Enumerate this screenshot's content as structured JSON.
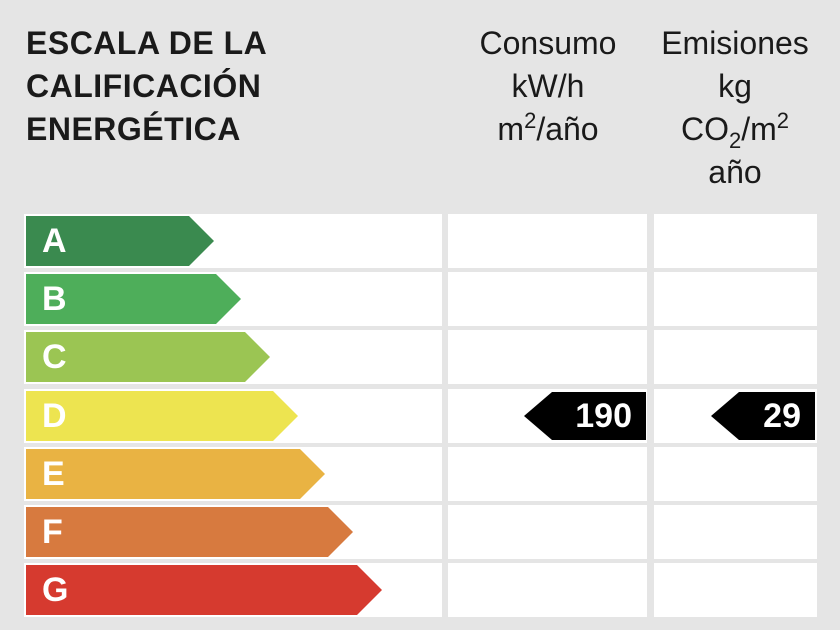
{
  "header": {
    "title_lines": [
      "ESCALA DE LA",
      "CALIFICACIÓN",
      "ENERGÉTICA"
    ],
    "consumo": {
      "line1": "Consumo",
      "line2": "kW/h",
      "line3_base": "m",
      "line3_sup": "2",
      "line3_rest": "/año"
    },
    "emisiones": {
      "line1": "Emisiones",
      "line2": "kg",
      "line3_base": "CO",
      "line3_sub": "2",
      "line3_mid": "/m",
      "line3_sup": "2",
      "line4": "año"
    }
  },
  "rating": {
    "letters": [
      "A",
      "B",
      "C",
      "D",
      "E",
      "F",
      "G"
    ],
    "colors": [
      "#3a8a4f",
      "#4eae5a",
      "#9bc553",
      "#ede450",
      "#e9b343",
      "#d77a3f",
      "#d63a2f"
    ],
    "current_letter": "D",
    "consumo_value": "190",
    "emisiones_value": "29"
  }
}
